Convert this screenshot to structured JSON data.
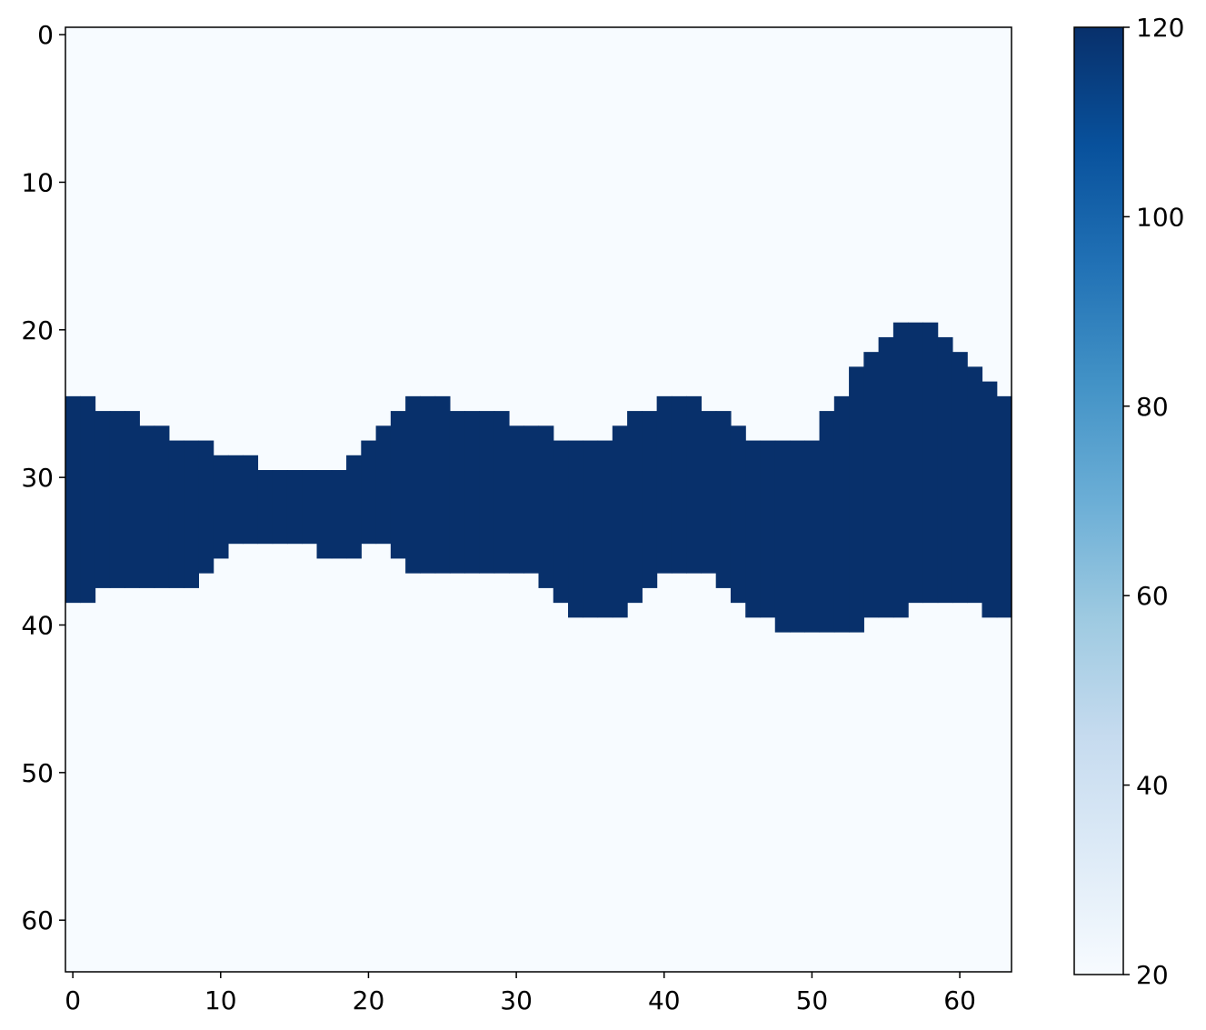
{
  "chart_data": {
    "type": "heatmap",
    "title": "",
    "xlabel": "",
    "ylabel": "",
    "grid": false,
    "xlim": [
      -0.5,
      63.5
    ],
    "ylim": [
      63.5,
      -0.5
    ],
    "xticks": [
      0,
      10,
      20,
      30,
      40,
      50,
      60
    ],
    "yticks": [
      0,
      10,
      20,
      30,
      40,
      50,
      60
    ],
    "x_tick_labels": [
      "0",
      "10",
      "20",
      "30",
      "40",
      "50",
      "60"
    ],
    "y_tick_labels": [
      "0",
      "10",
      "20",
      "30",
      "40",
      "50",
      "60"
    ],
    "colormap": "Blues",
    "low_color": "#f7fbff",
    "high_color": "#08306b",
    "background_value": 20,
    "band_value": 120,
    "band_description": "columns 0-63; for each column, rows from band_top to band_bottom (inclusive) have band_value, all other cells have background_value",
    "band_top": [
      25,
      25,
      26,
      26,
      26,
      27,
      27,
      28,
      28,
      28,
      29,
      29,
      29,
      30,
      30,
      30,
      30,
      30,
      30,
      29,
      28,
      27,
      26,
      25,
      25,
      25,
      26,
      26,
      26,
      26,
      27,
      27,
      27,
      28,
      28,
      28,
      28,
      27,
      26,
      26,
      25,
      25,
      25,
      26,
      26,
      27,
      28,
      28,
      28,
      28,
      28,
      26,
      25,
      23,
      22,
      21,
      20,
      20,
      20,
      21,
      22,
      23,
      24,
      25
    ],
    "band_bottom": [
      38,
      38,
      37,
      37,
      37,
      37,
      37,
      37,
      37,
      36,
      35,
      34,
      34,
      34,
      34,
      34,
      34,
      35,
      35,
      35,
      34,
      34,
      35,
      36,
      36,
      36,
      36,
      36,
      36,
      36,
      36,
      36,
      37,
      38,
      39,
      39,
      39,
      39,
      38,
      37,
      36,
      36,
      36,
      36,
      37,
      38,
      39,
      39,
      40,
      40,
      40,
      40,
      40,
      40,
      39,
      39,
      39,
      38,
      38,
      38,
      38,
      38,
      39,
      39
    ],
    "colorbar": {
      "vmin": 20,
      "vmax": 120,
      "ticks": [
        20,
        40,
        60,
        80,
        100,
        120
      ],
      "tick_labels": [
        "20",
        "40",
        "60",
        "80",
        "100",
        "120"
      ]
    }
  }
}
